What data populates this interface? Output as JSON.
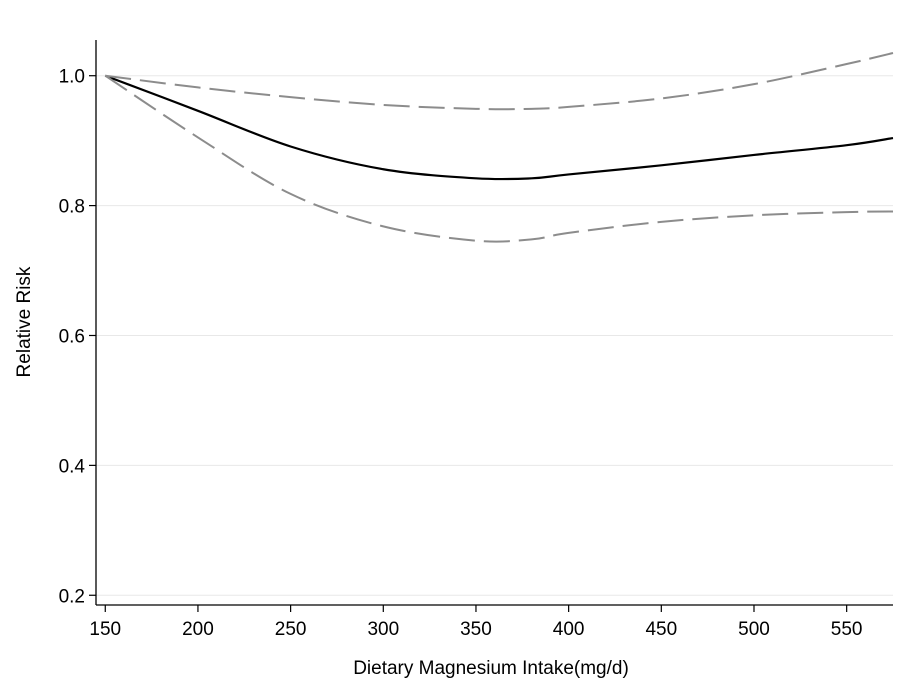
{
  "chart_data": {
    "type": "line",
    "title": "",
    "xlabel": "Dietary Magnesium Intake(mg/d)",
    "ylabel": "Relative Risk",
    "xlim": [
      145,
      575
    ],
    "ylim": [
      0.185,
      1.055
    ],
    "xticks": [
      150,
      200,
      250,
      300,
      350,
      400,
      450,
      500,
      550
    ],
    "yticks": [
      0.2,
      0.4,
      0.6,
      0.8,
      1.0
    ],
    "ytick_labels": [
      "0.2",
      "0.4",
      "0.6",
      "0.8",
      "1.0"
    ],
    "grid": "horizontal",
    "legend": "none",
    "series": [
      {
        "style": "solid",
        "color": "#000000",
        "x": [
          150,
          200,
          250,
          300,
          350,
          380,
          400,
          450,
          500,
          550,
          575
        ],
        "y": [
          1.0,
          0.946,
          0.891,
          0.856,
          0.842,
          0.842,
          0.848,
          0.862,
          0.878,
          0.893,
          0.904
        ]
      },
      {
        "style": "dashed",
        "color": "#8c8c8c",
        "x": [
          150,
          200,
          250,
          300,
          350,
          380,
          400,
          450,
          500,
          550,
          575
        ],
        "y": [
          1.0,
          0.982,
          0.967,
          0.955,
          0.949,
          0.949,
          0.952,
          0.965,
          0.987,
          1.018,
          1.035
        ]
      },
      {
        "style": "dashed",
        "color": "#8c8c8c",
        "x": [
          150,
          200,
          250,
          300,
          350,
          380,
          400,
          450,
          500,
          550,
          575
        ],
        "y": [
          1.0,
          0.905,
          0.818,
          0.768,
          0.746,
          0.748,
          0.758,
          0.775,
          0.785,
          0.79,
          0.791
        ]
      }
    ]
  }
}
